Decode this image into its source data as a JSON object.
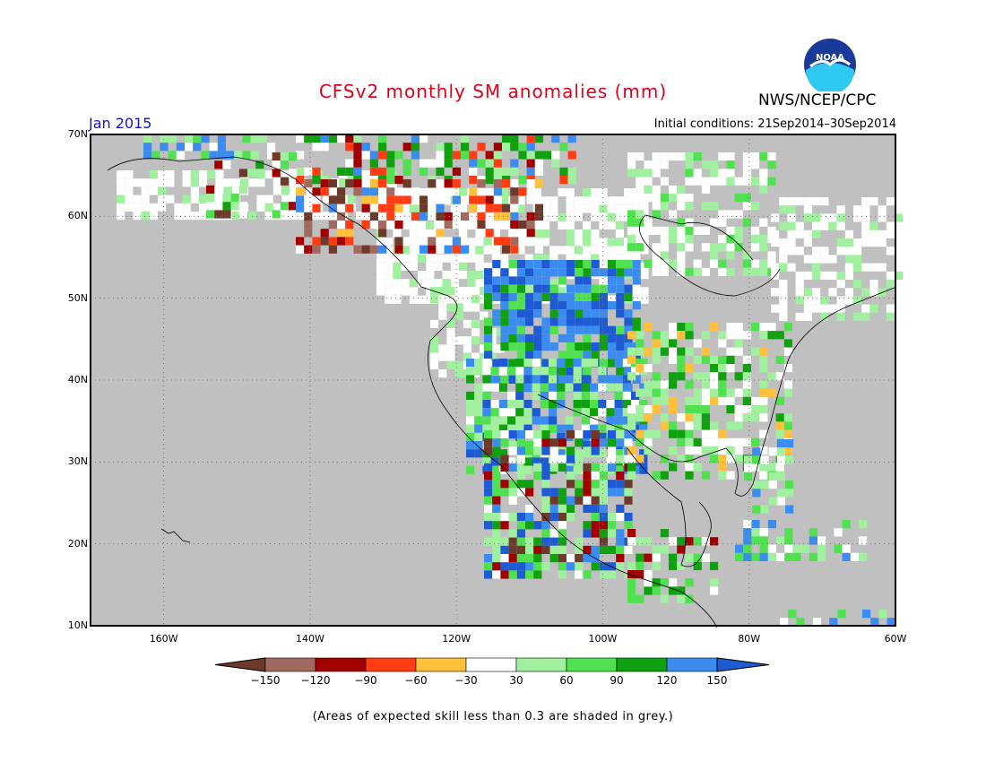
{
  "header": {
    "title": "CFSv2 monthly SM anomalies (mm)",
    "valid_month": "Jan 2015",
    "initial_conditions": "Initial conditions: 21Sep2014–30Sep2014",
    "agency": "NWS/NCEP/CPC",
    "logo_text": "NOAA"
  },
  "map": {
    "lat_labels": [
      "70N",
      "60N",
      "50N",
      "40N",
      "30N",
      "20N",
      "10N"
    ],
    "lon_labels": [
      "160W",
      "140W",
      "120W",
      "100W",
      "80W",
      "60W"
    ],
    "lat_range": [
      10,
      70
    ],
    "lon_range": [
      -170,
      -60
    ],
    "background": "#c0c0c0"
  },
  "colorbar": {
    "labels": [
      "−150",
      "−120",
      "−90",
      "−60",
      "−30",
      "30",
      "60",
      "90",
      "120",
      "150"
    ],
    "colors": [
      "#6b3a2a",
      "#a06a60",
      "#a00000",
      "#ff3c14",
      "#ffc03c",
      "#ffffff",
      "#a0f0a0",
      "#50e050",
      "#10a010",
      "#3c8cf0",
      "#1e5ad2"
    ]
  },
  "footnote": "(Areas of expected skill less than 0.3 are shaded in grey.)"
}
